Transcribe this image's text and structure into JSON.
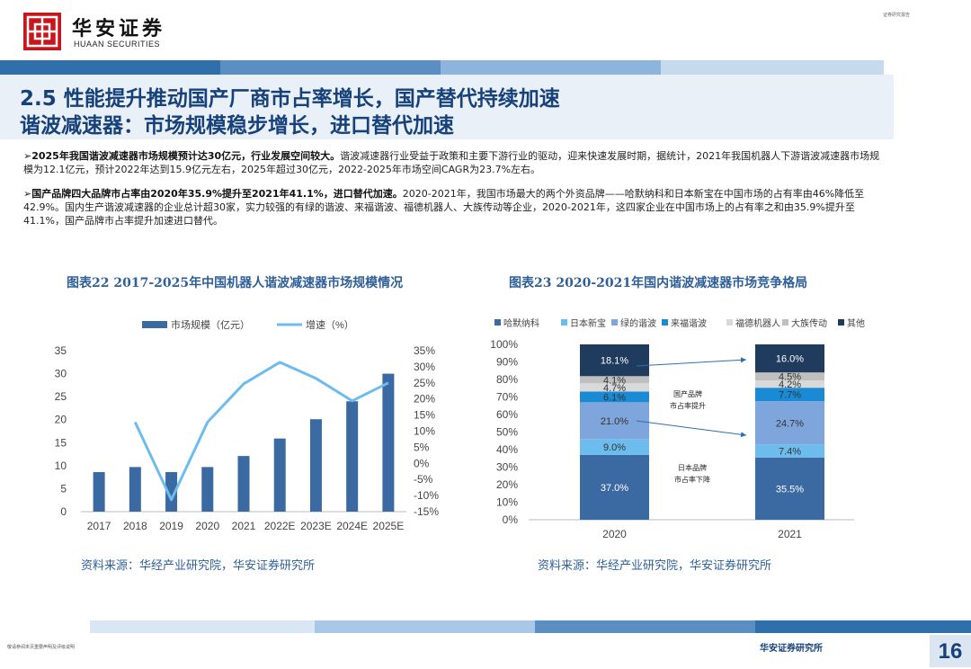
{
  "header": {
    "logo_cn": "华安证券",
    "logo_en": "HUAAN SECURITIES",
    "tag": "证券研究报告"
  },
  "title": {
    "line1": "2.5 性能提升推动国产厂商市占率增长，国产替代持续加速",
    "line2": "谐波减速器：市场规模稳步增长，进口替代加速"
  },
  "bullets": [
    {
      "marker": "➢",
      "bold": "2025年我国谐波减速器市场规模预计达30亿元，行业发展空间较大。",
      "text": "谐波减速器行业受益于政策和主要下游行业的驱动，迎来快速发展时期，据统计，2021年我国机器人下游谐波减速器市场规模为12.1亿元，预计2022年达到15.9亿元左右，2025年超过30亿元，2022-2025年市场空间CAGR为23.7%左右。"
    },
    {
      "marker": "➢",
      "bold": "国产品牌四大品牌市占率由2020年35.9%提升至2021年41.1%，进口替代加速。",
      "text": "2020-2021年，我国市场最大的两个外资品牌——哈默纳科和日本新宝在中国市场的占有率由46%降低至42.9%。国内生产谐波减速器的企业总计超30家，实力较强的有绿的谐波、来福谐波、福德机器人、大族传动等企业，2020-2021年，这四家企业在中国市场上的占有率之和由35.9%提升至41.1%，国产品牌市占率提升加速进口替代。"
    }
  ],
  "chart1_title": "图表22 2017-2025年中国机器人谐波减速器市场规模情况",
  "chart2_title": "图表23 2020-2021年国内谐波减速器市场竞争格局",
  "source1": "资料来源：华经产业研究院，华安证券研究所",
  "source2": "资料来源：华经产业研究院，华安证券研究所",
  "footer": {
    "disclaimer": "敬请参阅末页重要声明及评级说明",
    "org": "华安证券研究所",
    "page": "16"
  },
  "chart_data": [
    {
      "type": "bar",
      "legend": [
        "市场规模（亿元）",
        "增速（%）"
      ],
      "categories": [
        "2017",
        "2018",
        "2019",
        "2020",
        "2021",
        "2022E",
        "2023E",
        "2024E",
        "2025E"
      ],
      "series": [
        {
          "name": "市场规模（亿元）",
          "type": "bar",
          "axis": "left",
          "color": "#3b6aa3",
          "values": [
            8.6,
            9.7,
            8.6,
            9.7,
            12.1,
            15.9,
            20.1,
            24.0,
            30.0
          ]
        },
        {
          "name": "增速（%）",
          "type": "line",
          "axis": "right",
          "color": "#6cbcee",
          "values": [
            null,
            12.8,
            -11.3,
            12.8,
            24.7,
            31.4,
            26.4,
            19.4,
            25.0
          ]
        }
      ],
      "y_left": {
        "min": 0,
        "max": 35,
        "ticks": [
          "0",
          "5",
          "10",
          "15",
          "20",
          "25",
          "30",
          "35"
        ]
      },
      "y_right": {
        "min": -15,
        "max": 35,
        "ticks": [
          "-15%",
          "-10%",
          "-5%",
          "0%",
          "5%",
          "10%",
          "15%",
          "20%",
          "25%",
          "30%",
          "35%"
        ]
      },
      "legend_position": "top"
    },
    {
      "type": "bar",
      "stacked": true,
      "categories": [
        "2020",
        "2021"
      ],
      "y_ticks": [
        "0%",
        "10%",
        "20%",
        "30%",
        "40%",
        "50%",
        "60%",
        "70%",
        "80%",
        "90%",
        "100%"
      ],
      "series": [
        {
          "name": "哈默纳科",
          "color": "#3b6aa3",
          "values": [
            37.0,
            35.5
          ],
          "labels": [
            "37.0%",
            "35.5%"
          ]
        },
        {
          "name": "日本新宝",
          "color": "#6cbcee",
          "values": [
            9.0,
            7.4
          ],
          "labels": [
            "9.0%",
            "7.4%"
          ]
        },
        {
          "name": "绿的谐波",
          "color": "#7ea6dc",
          "values": [
            21.0,
            24.7
          ],
          "labels": [
            "21.0%",
            "24.7%"
          ]
        },
        {
          "name": "来福谐波",
          "color": "#1a8ad4",
          "values": [
            6.1,
            7.7
          ],
          "labels": [
            "6.1%",
            "7.7%"
          ]
        },
        {
          "name": "福德机器人",
          "color": "#d9d9d9",
          "values": [
            4.7,
            4.2
          ],
          "labels": [
            "4.7%",
            "4.2%"
          ]
        },
        {
          "name": "大族传动",
          "color": "#bfbfbf",
          "values": [
            4.1,
            4.5
          ],
          "labels": [
            "4.1%",
            "4.5%"
          ]
        },
        {
          "name": "其他",
          "color": "#1f3b5e",
          "values": [
            18.1,
            16.0
          ],
          "labels": [
            "18.1%",
            "16.0%"
          ]
        }
      ],
      "annotations": [
        "国产品牌\n市占率提升",
        "日本品牌\n市占率下降"
      ],
      "legend_position": "top"
    }
  ]
}
